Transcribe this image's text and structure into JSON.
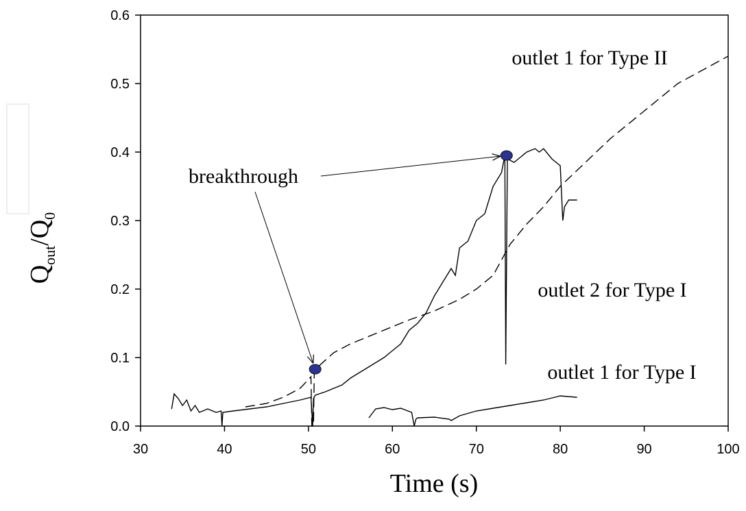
{
  "chart_data": {
    "type": "line",
    "x_label": "Time (s)",
    "y_label": [
      "Q",
      "out",
      "/Q",
      "0"
    ],
    "xlim": [
      30,
      100
    ],
    "xticks": [
      30,
      40,
      50,
      60,
      70,
      80,
      90,
      100
    ],
    "ylim": [
      0,
      0.6
    ],
    "yticks": [
      {
        "value": 0,
        "label": "0.0"
      },
      0.1,
      0.2,
      0.3,
      0.4,
      0.5,
      0.6
    ],
    "series": [
      {
        "name": "outlet 1 for Type II",
        "color": "#000000",
        "style": "dashed",
        "x": [
          42.5,
          45,
          47,
          49,
          50,
          50.3,
          50.4,
          50.6,
          50.7,
          51,
          53,
          55,
          58,
          60,
          62,
          65,
          68,
          70,
          72,
          74,
          76,
          78,
          80,
          83,
          86,
          90,
          94,
          97,
          100
        ],
        "values": [
          0.028,
          0.033,
          0.042,
          0.055,
          0.068,
          0.072,
          0.0,
          0.0,
          0.08,
          0.085,
          0.107,
          0.12,
          0.135,
          0.145,
          0.155,
          0.168,
          0.185,
          0.2,
          0.22,
          0.265,
          0.295,
          0.32,
          0.35,
          0.385,
          0.42,
          0.46,
          0.5,
          0.52,
          0.54
        ]
      },
      {
        "name": "outlet 2 for Type I",
        "color": "#000000",
        "style": "solid",
        "x": [
          33.7,
          34,
          34.5,
          35,
          35.5,
          36,
          36.5,
          37,
          38,
          39,
          39.6,
          39.7,
          39.8,
          41,
          43,
          45,
          47,
          49,
          50.3,
          50.5,
          50.6,
          50.8,
          52,
          54,
          55,
          57,
          59,
          60,
          61,
          62,
          63,
          64,
          65,
          66,
          67,
          67.5,
          68,
          69,
          70,
          71,
          72,
          73,
          73.4,
          73.5,
          73.7,
          74.5,
          75,
          76,
          77,
          77.5,
          78,
          79,
          80,
          80.3,
          80.5,
          81,
          82
        ],
        "values": [
          0.025,
          0.047,
          0.04,
          0.03,
          0.038,
          0.022,
          0.03,
          0.02,
          0.025,
          0.02,
          0.022,
          0.0,
          0.02,
          0.022,
          0.025,
          0.028,
          0.033,
          0.038,
          0.042,
          0.0,
          0.04,
          0.045,
          0.05,
          0.06,
          0.07,
          0.085,
          0.1,
          0.11,
          0.12,
          0.14,
          0.15,
          0.165,
          0.19,
          0.21,
          0.23,
          0.22,
          0.26,
          0.27,
          0.3,
          0.31,
          0.35,
          0.37,
          0.395,
          0.09,
          0.39,
          0.385,
          0.39,
          0.4,
          0.405,
          0.4,
          0.405,
          0.39,
          0.38,
          0.3,
          0.32,
          0.33,
          0.33
        ]
      },
      {
        "name": "outlet 1 for Type I",
        "color": "#000000",
        "style": "solid",
        "x": [
          57.2,
          58,
          59,
          60,
          61,
          62.3,
          62.6,
          62.8,
          63,
          65,
          66.8,
          67,
          68,
          70,
          72,
          74,
          76,
          78,
          79,
          80,
          82
        ],
        "values": [
          0.012,
          0.025,
          0.027,
          0.024,
          0.026,
          0.02,
          0.0,
          0.01,
          0.012,
          0.013,
          0.01,
          0.008,
          0.015,
          0.022,
          0.026,
          0.03,
          0.034,
          0.038,
          0.041,
          0.044,
          0.042
        ]
      }
    ],
    "markers": {
      "label": "breakthrough",
      "color": "#2b338f",
      "x": [
        50.8,
        73.6
      ],
      "values": [
        0.083,
        0.395
      ]
    }
  }
}
